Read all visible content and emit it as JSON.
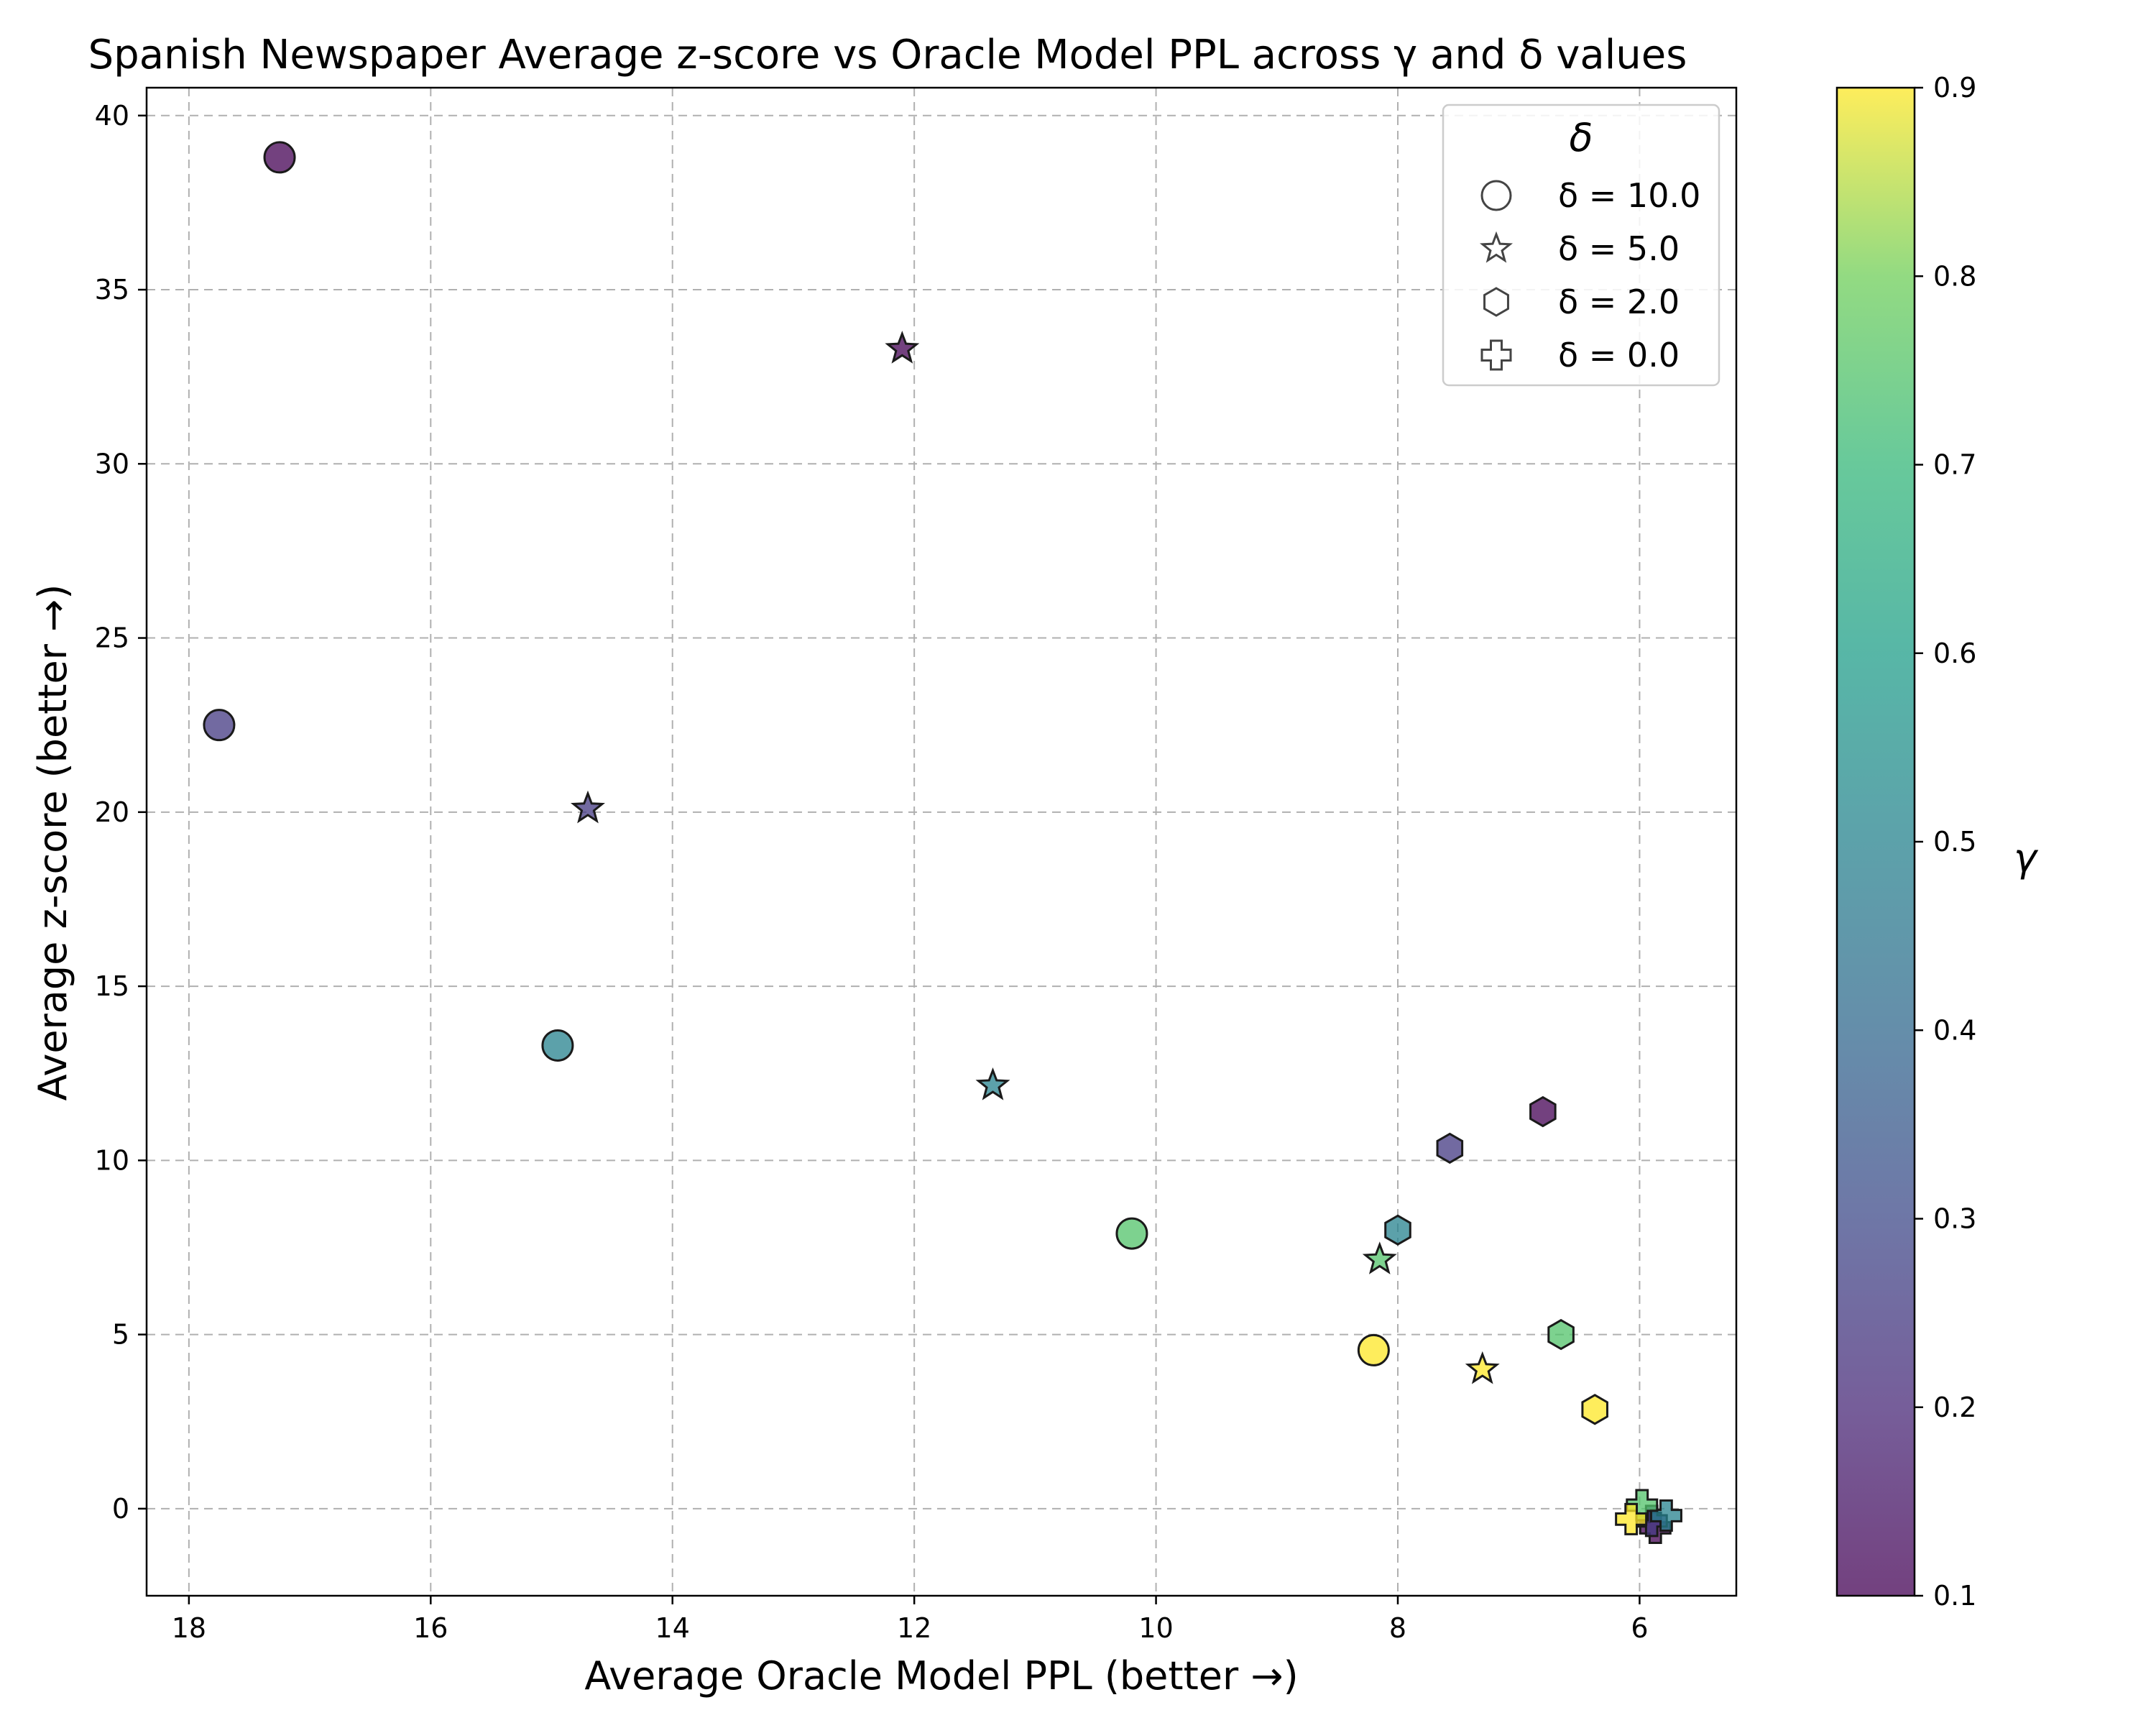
{
  "chart_data": {
    "type": "scatter",
    "title": "Spanish Newspaper Average z-score vs Oracle Model PPL across γ and δ values",
    "xlabel": "Average Oracle Model PPL (better →)",
    "ylabel": "Average z-score (better →)",
    "x_inverted": true,
    "xlim": [
      18.35,
      5.2
    ],
    "ylim": [
      -2.5,
      40.8
    ],
    "xticks": [
      "18",
      "16",
      "14",
      "12",
      "10",
      "8",
      "6"
    ],
    "yticks": [
      "0",
      "5",
      "10",
      "15",
      "20",
      "25",
      "30",
      "35",
      "40"
    ],
    "grid": true,
    "legend": {
      "title": "δ",
      "placement": "top-right",
      "entries": [
        {
          "label": "δ = 10.0",
          "marker": "circle"
        },
        {
          "label": "δ = 5.0",
          "marker": "star"
        },
        {
          "label": "δ = 2.0",
          "marker": "hexagon"
        },
        {
          "label": "δ = 0.0",
          "marker": "plus"
        }
      ]
    },
    "colorbar": {
      "label": "γ",
      "range": [
        0.1,
        0.9
      ],
      "ticks": [
        "0.1",
        "0.2",
        "0.3",
        "0.4",
        "0.5",
        "0.6",
        "0.7",
        "0.8",
        "0.9"
      ],
      "colormap": "viridis"
    },
    "series": [
      {
        "delta": 10.0,
        "marker": "circle",
        "points": [
          {
            "x": 17.25,
            "y": 38.8,
            "gamma": 0.1
          },
          {
            "x": 17.75,
            "y": 22.5,
            "gamma": 0.25
          },
          {
            "x": 14.95,
            "y": 13.3,
            "gamma": 0.5
          },
          {
            "x": 10.2,
            "y": 7.9,
            "gamma": 0.75
          },
          {
            "x": 8.2,
            "y": 4.55,
            "gamma": 0.9
          }
        ]
      },
      {
        "delta": 5.0,
        "marker": "star",
        "points": [
          {
            "x": 12.1,
            "y": 33.3,
            "gamma": 0.1
          },
          {
            "x": 14.7,
            "y": 20.1,
            "gamma": 0.25
          },
          {
            "x": 11.35,
            "y": 12.15,
            "gamma": 0.5
          },
          {
            "x": 8.15,
            "y": 7.15,
            "gamma": 0.75
          },
          {
            "x": 7.3,
            "y": 4.0,
            "gamma": 0.9
          }
        ]
      },
      {
        "delta": 2.0,
        "marker": "hexagon",
        "points": [
          {
            "x": 6.8,
            "y": 11.4,
            "gamma": 0.1
          },
          {
            "x": 7.57,
            "y": 10.35,
            "gamma": 0.25
          },
          {
            "x": 8.0,
            "y": 8.0,
            "gamma": 0.5
          },
          {
            "x": 6.65,
            "y": 5.0,
            "gamma": 0.75
          },
          {
            "x": 6.37,
            "y": 2.85,
            "gamma": 0.9
          }
        ]
      },
      {
        "delta": 0.0,
        "marker": "plus",
        "points": [
          {
            "x": 5.87,
            "y": -0.55,
            "gamma": 0.1
          },
          {
            "x": 5.9,
            "y": -0.35,
            "gamma": 0.25
          },
          {
            "x": 5.78,
            "y": -0.2,
            "gamma": 0.5
          },
          {
            "x": 5.98,
            "y": 0.1,
            "gamma": 0.75
          },
          {
            "x": 6.07,
            "y": -0.3,
            "gamma": 0.9
          }
        ]
      }
    ]
  }
}
